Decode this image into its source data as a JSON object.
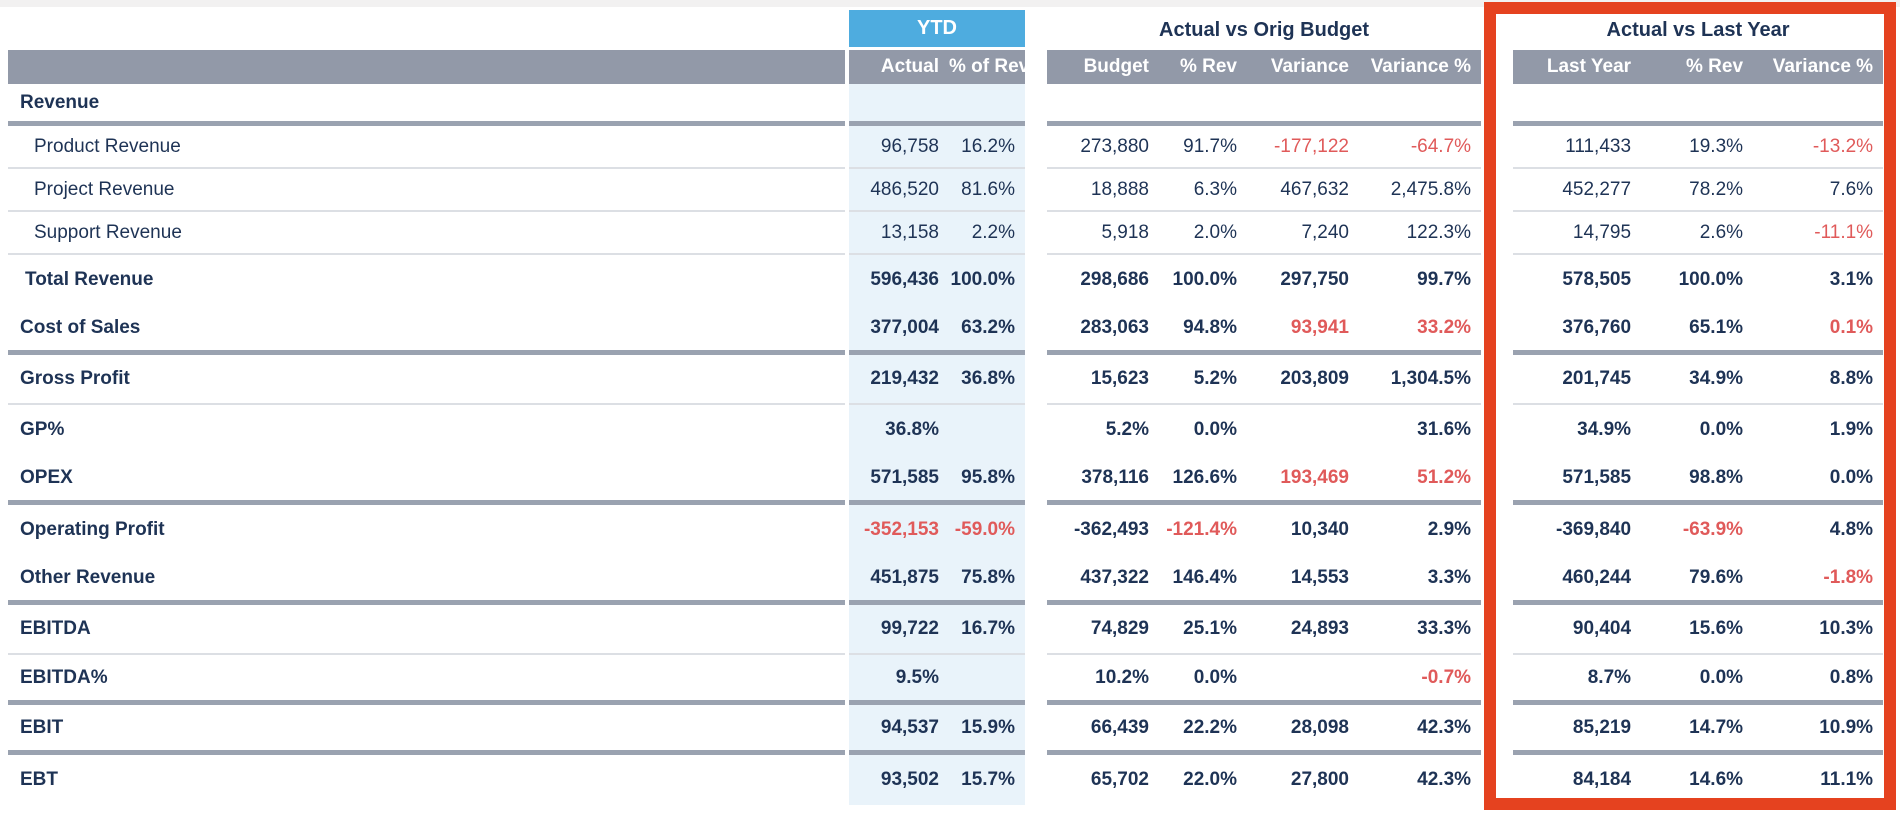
{
  "colors": {
    "navy": "#1e3355",
    "red-text": "#e05a5a",
    "blue-hdr": "#4eacdf",
    "gray-hdr": "#9299a8",
    "ytd-bg": "#e9f3fa",
    "thick": "#9aa2b0",
    "thin": "#dcdfe4",
    "red-box": "#e5421f",
    "topstrip": "#f2f1f1"
  },
  "sections": {
    "ytd": {
      "title": "YTD",
      "columns": [
        "Actual",
        "% of Rev"
      ]
    },
    "budget": {
      "title": "Actual vs Orig Budget",
      "columns": [
        "Budget",
        "% Rev",
        "Variance",
        "Variance %"
      ]
    },
    "last_year": {
      "title": "Actual vs Last Year",
      "columns": [
        "Last Year",
        "% Rev",
        "Variance %"
      ]
    }
  },
  "rows": [
    {
      "id": "revenue-header",
      "label": "Revenue",
      "style": "header",
      "divider": "thick",
      "cells": [
        "",
        "",
        "",
        "",
        "",
        "",
        "",
        "",
        ""
      ]
    },
    {
      "id": "product-revenue",
      "label": "Product Revenue",
      "style": "sub",
      "divider": "thin",
      "cells": [
        "96,758",
        "16.2%",
        "273,880",
        "91.7%",
        {
          "v": "-177,122",
          "red": true
        },
        {
          "v": "-64.7%",
          "red": true
        },
        "111,433",
        "19.3%",
        {
          "v": "-13.2%",
          "red": true
        }
      ]
    },
    {
      "id": "project-revenue",
      "label": "Project Revenue",
      "style": "sub",
      "divider": "thin",
      "cells": [
        "486,520",
        "81.6%",
        "18,888",
        "6.3%",
        "467,632",
        "2,475.8%",
        "452,277",
        "78.2%",
        "7.6%"
      ]
    },
    {
      "id": "support-revenue",
      "label": "Support Revenue",
      "style": "sub",
      "divider": "thin",
      "cells": [
        "13,158",
        "2.2%",
        "5,918",
        "2.0%",
        "7,240",
        "122.3%",
        "14,795",
        "2.6%",
        {
          "v": "-11.1%",
          "red": true
        }
      ]
    },
    {
      "id": "total-revenue",
      "label": "Total Revenue",
      "style": "total",
      "divider": "none",
      "cells": [
        "596,436",
        "100.0%",
        "298,686",
        "100.0%",
        "297,750",
        "99.7%",
        "578,505",
        "100.0%",
        "3.1%"
      ]
    },
    {
      "id": "cost-of-sales",
      "label": "Cost of Sales",
      "style": "section",
      "divider": "thick",
      "cells": [
        "377,004",
        "63.2%",
        "283,063",
        "94.8%",
        {
          "v": "93,941",
          "red": true
        },
        {
          "v": "33.2%",
          "red": true
        },
        "376,760",
        "65.1%",
        {
          "v": "0.1%",
          "red": true
        }
      ]
    },
    {
      "id": "gross-profit",
      "label": "Gross Profit",
      "style": "section",
      "divider": "thin",
      "cells": [
        "219,432",
        "36.8%",
        "15,623",
        "5.2%",
        "203,809",
        "1,304.5%",
        "201,745",
        "34.9%",
        "8.8%"
      ]
    },
    {
      "id": "gp-percent",
      "label": "GP%",
      "style": "section",
      "divider": "none",
      "cells": [
        "36.8%",
        "",
        "5.2%",
        "0.0%",
        "",
        "31.6%",
        "34.9%",
        "0.0%",
        "1.9%"
      ]
    },
    {
      "id": "opex",
      "label": "OPEX",
      "style": "section",
      "divider": "thick",
      "cells": [
        "571,585",
        "95.8%",
        "378,116",
        "126.6%",
        {
          "v": "193,469",
          "red": true
        },
        {
          "v": "51.2%",
          "red": true
        },
        "571,585",
        "98.8%",
        "0.0%"
      ]
    },
    {
      "id": "operating-profit",
      "label": "Operating Profit",
      "style": "section",
      "divider": "none",
      "cells": [
        {
          "v": "-352,153",
          "red": true
        },
        {
          "v": "-59.0%",
          "red": true
        },
        "-362,493",
        {
          "v": "-121.4%",
          "red": true
        },
        "10,340",
        "2.9%",
        "-369,840",
        {
          "v": "-63.9%",
          "red": true
        },
        "4.8%"
      ]
    },
    {
      "id": "other-revenue",
      "label": "Other Revenue",
      "style": "section",
      "divider": "thick",
      "cells": [
        "451,875",
        "75.8%",
        "437,322",
        "146.4%",
        "14,553",
        "3.3%",
        "460,244",
        "79.6%",
        {
          "v": "-1.8%",
          "red": true
        }
      ]
    },
    {
      "id": "ebitda",
      "label": "EBITDA",
      "style": "section",
      "divider": "thin",
      "cells": [
        "99,722",
        "16.7%",
        "74,829",
        "25.1%",
        "24,893",
        "33.3%",
        "90,404",
        "15.6%",
        "10.3%"
      ]
    },
    {
      "id": "ebitda-percent",
      "label": "EBITDA%",
      "style": "section",
      "divider": "thick",
      "cells": [
        "9.5%",
        "",
        "10.2%",
        "0.0%",
        "",
        {
          "v": "-0.7%",
          "red": true
        },
        "8.7%",
        "0.0%",
        "0.8%"
      ]
    },
    {
      "id": "ebit",
      "label": "EBIT",
      "style": "section",
      "divider": "thick",
      "cells": [
        "94,537",
        "15.9%",
        "66,439",
        "22.2%",
        "28,098",
        "42.3%",
        "85,219",
        "14.7%",
        "10.9%"
      ]
    },
    {
      "id": "ebt",
      "label": "EBT",
      "style": "section",
      "divider": "none",
      "cells": [
        "93,502",
        "15.7%",
        "65,702",
        "22.0%",
        "27,800",
        "42.3%",
        "84,184",
        "14.6%",
        "11.1%"
      ]
    }
  ]
}
